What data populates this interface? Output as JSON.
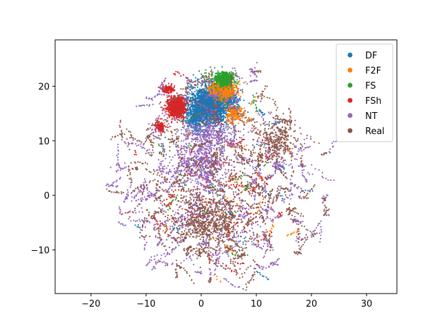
{
  "chart_data": {
    "type": "scatter",
    "title": "",
    "xlabel": "",
    "ylabel": "",
    "xlim": [
      -26.5,
      35.5
    ],
    "ylim": [
      -18,
      28.5
    ],
    "x_ticks": [
      -20,
      -10,
      0,
      10,
      20,
      30
    ],
    "y_ticks": [
      -10,
      0,
      10,
      20
    ],
    "grid": false,
    "legend_position": "top-right",
    "series": [
      {
        "name": "DF",
        "color": "#1f77b4",
        "clusters": [
          {
            "x": 1.5,
            "y": 16.5,
            "sx": 3.2,
            "sy": 3.0,
            "n": 2200
          },
          {
            "x": -1.0,
            "y": 14.0,
            "sx": 1.5,
            "sy": 2.0,
            "n": 300
          },
          {
            "x": 5.0,
            "y": 17.5,
            "sx": 1.5,
            "sy": 1.5,
            "n": 250
          }
        ],
        "scatter": {
          "x": 3,
          "y": 3,
          "sx": 10,
          "sy": 10,
          "n": 120
        }
      },
      {
        "name": "F2F",
        "color": "#ff7f0e",
        "clusters": [
          {
            "x": 4.0,
            "y": 19.5,
            "sx": 2.0,
            "sy": 1.5,
            "n": 700
          },
          {
            "x": 6.0,
            "y": 15.0,
            "sx": 1.2,
            "sy": 1.2,
            "n": 200
          }
        ],
        "scatter": {
          "x": 3,
          "y": 2,
          "sx": 11,
          "sy": 10,
          "n": 200
        }
      },
      {
        "name": "FS",
        "color": "#2ca02c",
        "clusters": [
          {
            "x": 4.2,
            "y": 21.3,
            "sx": 1.4,
            "sy": 1.0,
            "n": 600
          }
        ],
        "scatter": {
          "x": 3,
          "y": 5,
          "sx": 10,
          "sy": 9,
          "n": 150
        }
      },
      {
        "name": "FSh",
        "color": "#d62728",
        "clusters": [
          {
            "x": -4.5,
            "y": 16.2,
            "sx": 1.4,
            "sy": 1.6,
            "n": 900
          },
          {
            "x": -7.5,
            "y": 12.5,
            "sx": 0.7,
            "sy": 0.8,
            "n": 150
          },
          {
            "x": -6.0,
            "y": 19.5,
            "sx": 1.0,
            "sy": 0.5,
            "n": 150
          }
        ],
        "scatter": {
          "x": 3,
          "y": 0,
          "sx": 10,
          "sy": 10,
          "n": 350
        }
      },
      {
        "name": "NT",
        "color": "#9467bd",
        "clusters": [
          {
            "x": 0.0,
            "y": 6.0,
            "sx": 4.0,
            "sy": 4.0,
            "n": 500
          },
          {
            "x": 1.0,
            "y": 11.0,
            "sx": 4.0,
            "sy": 2.0,
            "n": 300
          }
        ],
        "scatter": {
          "x": 3,
          "y": 2,
          "sx": 11,
          "sy": 11,
          "n": 1700
        }
      },
      {
        "name": "Real",
        "color": "#8c564b",
        "clusters": [
          {
            "x": 1.0,
            "y": -5.0,
            "sx": 5.0,
            "sy": 4.0,
            "n": 500
          },
          {
            "x": 14.0,
            "y": 10.0,
            "sx": 3.0,
            "sy": 3.0,
            "n": 300
          }
        ],
        "scatter": {
          "x": 4,
          "y": 2,
          "sx": 11,
          "sy": 11,
          "n": 2000
        }
      }
    ]
  }
}
